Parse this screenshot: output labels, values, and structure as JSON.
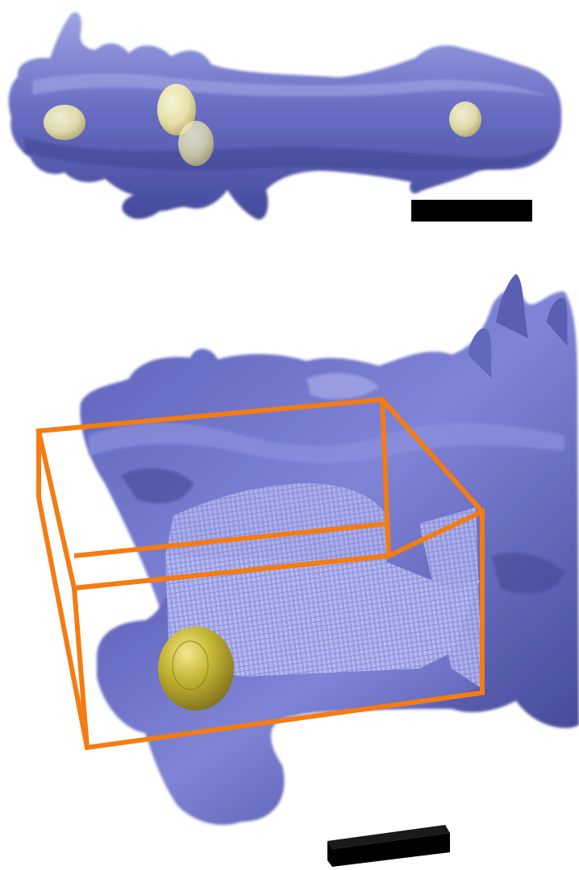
{
  "figure": {
    "panels": [
      {
        "id": "top-panel",
        "subject": "dendrite-segment-surface",
        "colors": {
          "surface": "#6a6fc4",
          "surface_dark": "#454a9a",
          "surface_light": "#9ea3e4",
          "inclusion": "#ece6a8",
          "inclusion_core": "#fffbd6"
        },
        "inclusion_count": 4,
        "has_scale_bar": true
      },
      {
        "id": "bottom-panel",
        "subject": "zoomed-cutaway-surface",
        "colors": {
          "surface": "#7378cf",
          "surface_dark": "#3f438f",
          "surface_light": "#b5b8ef",
          "cut_face": "#aeb2ee",
          "bounding_box": "#f47c12",
          "sphere": "#c8b62a",
          "sphere_highlight": "#f6ea8a"
        },
        "inclusion_count": 1,
        "has_bounding_box": true,
        "has_scale_bar": true
      }
    ],
    "scale_bar_color": "#000000"
  }
}
